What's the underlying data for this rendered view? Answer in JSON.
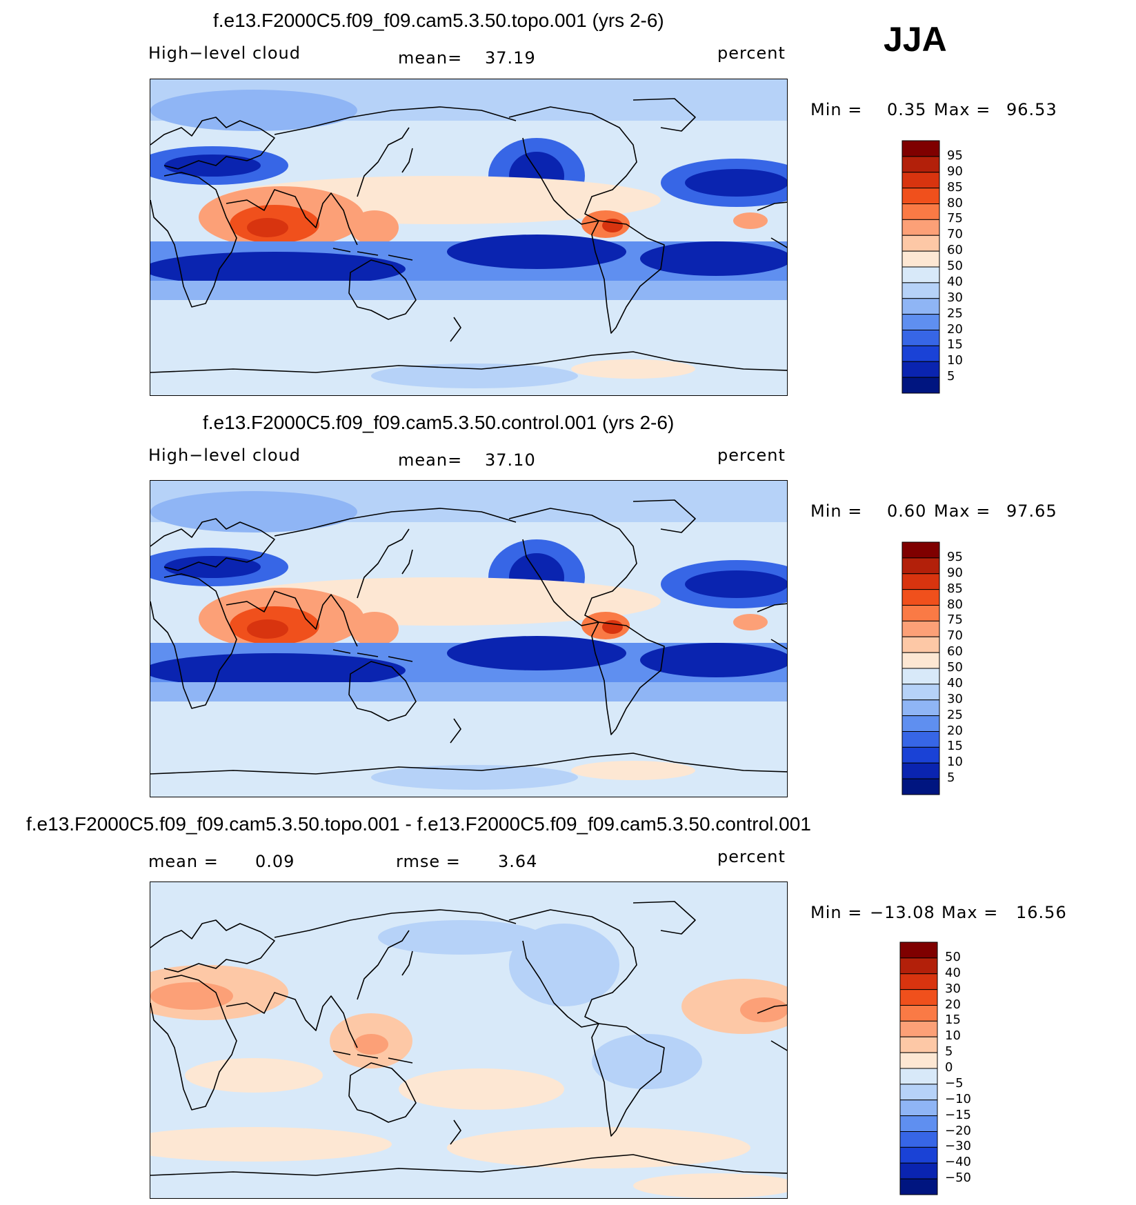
{
  "season": "JJA",
  "panels": [
    {
      "title": "f.e13.F2000C5.f09_f09.cam5.3.50.topo.001 (yrs 2-6)",
      "left_label": "High−level cloud",
      "center_label": "mean=",
      "center_value": "37.19",
      "right_label": "percent",
      "min_label": "Min =",
      "min_value": "0.35",
      "max_label": "Max =",
      "max_value": "96.53",
      "levels": [
        "95",
        "90",
        "85",
        "80",
        "75",
        "70",
        "60",
        "50",
        "40",
        "30",
        "25",
        "20",
        "15",
        "10",
        "5"
      ],
      "kind": "abs"
    },
    {
      "title": "f.e13.F2000C5.f09_f09.cam5.3.50.control.001 (yrs 2-6)",
      "left_label": "High−level cloud",
      "center_label": "mean=",
      "center_value": "37.10",
      "right_label": "percent",
      "min_label": "Min =",
      "min_value": "0.60",
      "max_label": "Max =",
      "max_value": "97.65",
      "levels": [
        "95",
        "90",
        "85",
        "80",
        "75",
        "70",
        "60",
        "50",
        "40",
        "30",
        "25",
        "20",
        "15",
        "10",
        "5"
      ],
      "kind": "abs"
    },
    {
      "title": "f.e13.F2000C5.f09_f09.cam5.3.50.topo.001 - f.e13.F2000C5.f09_f09.cam5.3.50.control.001",
      "left_label": "mean =",
      "left_value": "0.09",
      "center_label": "rmse =",
      "center_value": "3.64",
      "right_label": "percent",
      "min_label": "Min =",
      "min_value": "−13.08",
      "max_label": "Max =",
      "max_value": "16.56",
      "levels": [
        "50",
        "40",
        "30",
        "20",
        "15",
        "10",
        "5",
        "0",
        "−5",
        "−10",
        "−15",
        "−20",
        "−30",
        "−40",
        "−50"
      ],
      "kind": "diff"
    }
  ],
  "colors": {
    "palette_top_to_bottom": [
      "#7f0000",
      "#b3200a",
      "#d8340f",
      "#f0501c",
      "#fa7a45",
      "#fca077",
      "#fdc8a6",
      "#fde7d3",
      "#d8e9f9",
      "#b6d2f8",
      "#8fb5f5",
      "#5f8ff0",
      "#3766e6",
      "#1a42d6",
      "#0a24b0",
      "#001580"
    ]
  }
}
